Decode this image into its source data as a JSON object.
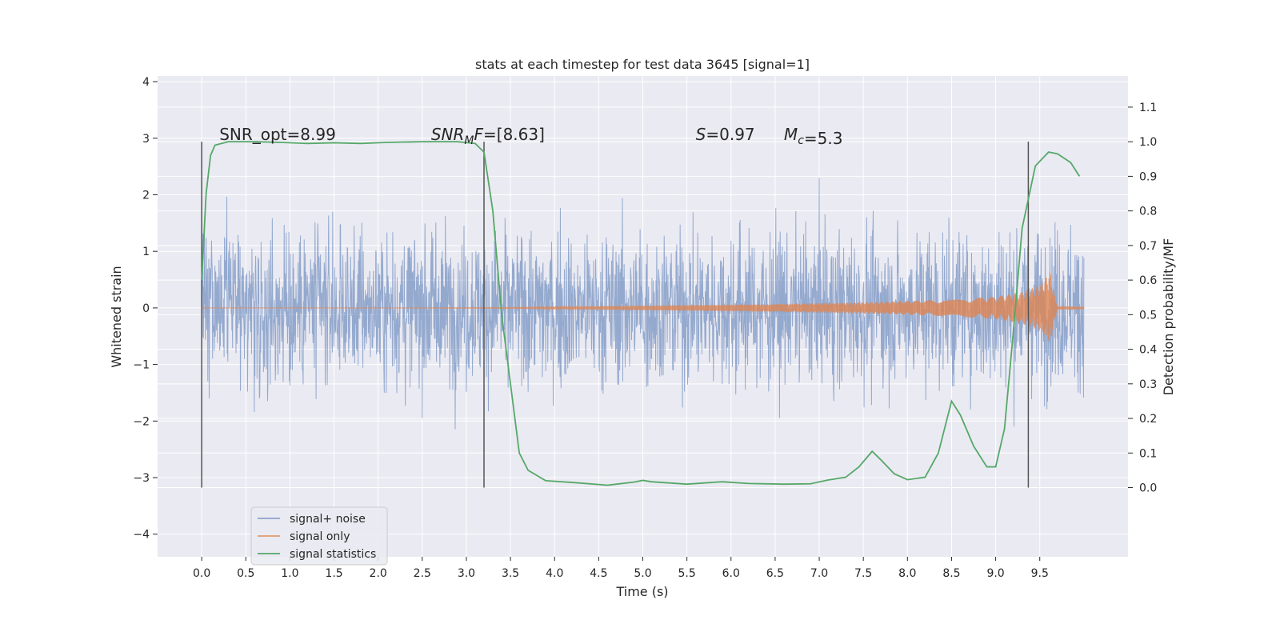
{
  "chart_data": {
    "type": "line",
    "title": "stats at each timestep for test data 3645 [signal=1]",
    "xlabel": "Time (s)",
    "ylabel": "Whitened strain",
    "ylabel_right": "Detection probability/MF",
    "xlim": [
      -0.5,
      10.5
    ],
    "ylim": [
      -4.4,
      4.1
    ],
    "ylim_right": [
      -0.2,
      1.19
    ],
    "xticks": [
      "0.0",
      "0.5",
      "1.0",
      "1.5",
      "2.0",
      "2.5",
      "3.0",
      "3.5",
      "4.0",
      "4.5",
      "5.0",
      "5.5",
      "6.0",
      "6.5",
      "7.0",
      "7.5",
      "8.0",
      "8.5",
      "9.0",
      "9.5"
    ],
    "yticks_left": [
      "4",
      "3",
      "2",
      "1",
      "0",
      "−1",
      "−2",
      "−3",
      "−4"
    ],
    "yticks_right": [
      "1.1",
      "1.0",
      "0.9",
      "0.8",
      "0.7",
      "0.6",
      "0.5",
      "0.4",
      "0.3",
      "0.2",
      "0.1",
      "0.0"
    ],
    "grid": true,
    "legend_position": "lower-left",
    "colors": {
      "background": "#eaeaf2",
      "grid": "#ffffff",
      "noise": "#4c72b0",
      "signal": "#dd8452",
      "stats": "#55a868",
      "marker": "#555555"
    },
    "series": [
      {
        "name": "signal+ noise",
        "style": "dense noisy strain trace, roughly ±1.7 envelope with spikes to about ±3.8",
        "x_range": [
          0.0,
          10.0
        ]
      },
      {
        "name": "signal only",
        "style": "chirp",
        "x_range": [
          0.0,
          10.0
        ],
        "envelope": {
          "x": [
            0.0,
            2.0,
            3.5,
            4.5,
            5.5,
            6.5,
            7.5,
            8.5,
            9.0,
            9.3,
            9.5,
            9.62,
            9.66,
            9.7,
            10.0
          ],
          "y": [
            0.0,
            0.0,
            0.01,
            0.03,
            0.05,
            0.07,
            0.1,
            0.15,
            0.2,
            0.28,
            0.4,
            0.65,
            0.3,
            0.03,
            0.02
          ]
        }
      },
      {
        "name": "signal statistics",
        "axis": "right",
        "x": [
          0.0,
          0.05,
          0.1,
          0.15,
          0.3,
          0.6,
          0.9,
          1.2,
          1.5,
          1.8,
          2.1,
          2.5,
          2.9,
          3.1,
          3.2,
          3.3,
          3.4,
          3.5,
          3.6,
          3.7,
          3.9,
          4.2,
          4.6,
          4.9,
          5.0,
          5.1,
          5.5,
          5.9,
          6.2,
          6.6,
          6.9,
          7.1,
          7.3,
          7.45,
          7.6,
          7.7,
          7.85,
          8.0,
          8.2,
          8.35,
          8.5,
          8.6,
          8.75,
          8.9,
          9.0,
          9.1,
          9.2,
          9.3,
          9.45,
          9.6,
          9.7,
          9.85,
          9.95
        ],
        "y": [
          0.6,
          0.85,
          0.96,
          0.99,
          1.0,
          1.0,
          0.998,
          0.995,
          0.997,
          0.995,
          0.998,
          1.0,
          1.0,
          0.995,
          0.97,
          0.8,
          0.5,
          0.3,
          0.1,
          0.05,
          0.02,
          0.015,
          0.007,
          0.016,
          0.021,
          0.017,
          0.01,
          0.017,
          0.012,
          0.01,
          0.011,
          0.022,
          0.03,
          0.06,
          0.105,
          0.08,
          0.04,
          0.023,
          0.03,
          0.1,
          0.25,
          0.21,
          0.12,
          0.06,
          0.06,
          0.17,
          0.45,
          0.75,
          0.93,
          0.97,
          0.965,
          0.94,
          0.9
        ]
      }
    ],
    "vlines": [
      0.0,
      3.2,
      9.37
    ],
    "annotations": [
      {
        "text": "SNR_opt=8.99"
      },
      {
        "base": "SNR",
        "sub": "MF",
        "rest": "=[8.63]"
      },
      {
        "base": "S",
        "sub": "",
        "rest": "=0.97"
      },
      {
        "base": "M",
        "sub": "c",
        "rest": "=5.3"
      }
    ]
  }
}
